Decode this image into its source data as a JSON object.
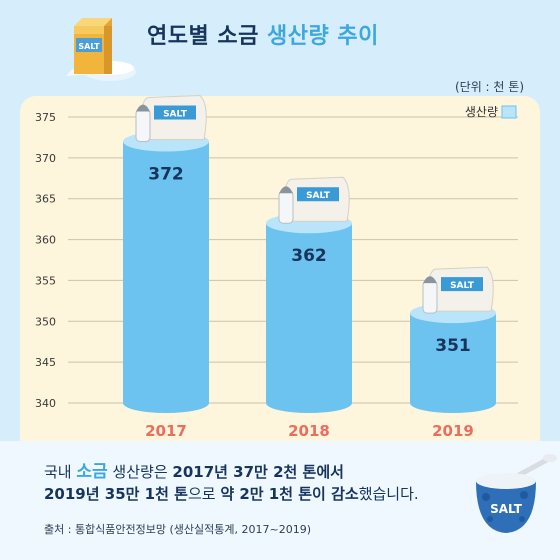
{
  "title": {
    "prefix": "연도별 소금 ",
    "highlight": "생산량 추이"
  },
  "unit_note": "(단위 : 천 톤)",
  "chart_data": {
    "type": "bar",
    "categories": [
      "2017",
      "2018",
      "2019"
    ],
    "series": [
      {
        "name": "생산량",
        "values": [
          372,
          362,
          351
        ]
      }
    ],
    "data_labels": [
      "372",
      "362",
      "351"
    ],
    "ylim": [
      340,
      375
    ],
    "yticks": [
      340,
      345,
      350,
      355,
      360,
      365,
      370,
      375
    ],
    "grid": true,
    "legend_position": "top-right",
    "bar_color": "#6cc3ef",
    "bar_top_color": "#b9e4fa",
    "category_label_color": "#ec6d5e"
  },
  "decorations": {
    "salt_bag_label": "SALT",
    "salt_box_label": "SALT",
    "salt_bowl_label": "SALT"
  },
  "caption": {
    "line1_a": "국내 ",
    "line1_highlight": "소금",
    "line1_b": " 생산량은 ",
    "line1_bold": "2017년 37만 2천 톤",
    "line1_c": "에서",
    "line2_bold1": "2019년 35만 1천 톤",
    "line2_a": "으로 ",
    "line2_bold2": "약 2만 1천 톤이 감소",
    "line2_b": "했습니다."
  },
  "source": "출처 : 통합식품안전정보망 (생산실적통계, 2017~2019)",
  "colors": {
    "background": "#d6eefb",
    "panel": "#fdf6dc",
    "title": "#17345c",
    "accent": "#3ea8de"
  }
}
